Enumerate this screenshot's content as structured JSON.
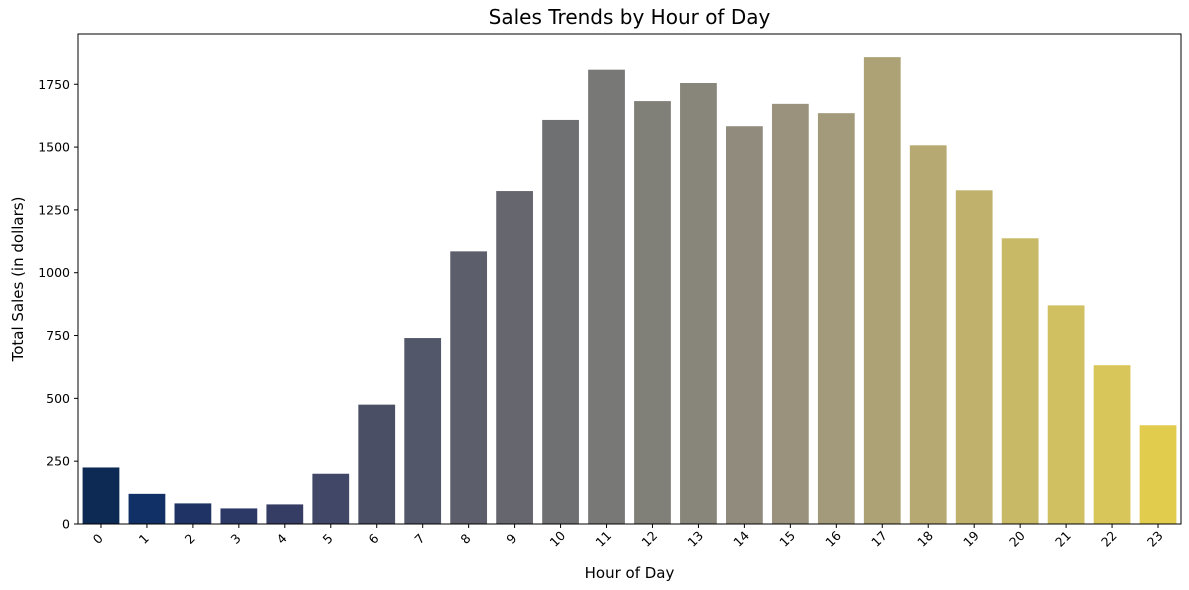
{
  "chart_data": {
    "type": "bar",
    "title": "Sales Trends by Hour of Day",
    "xlabel": "Hour of Day",
    "ylabel": "Total Sales (in dollars)",
    "categories": [
      "0",
      "1",
      "2",
      "3",
      "4",
      "5",
      "6",
      "7",
      "8",
      "9",
      "10",
      "11",
      "12",
      "13",
      "14",
      "15",
      "16",
      "17",
      "18",
      "19",
      "20",
      "21",
      "22",
      "23"
    ],
    "values": [
      225,
      120,
      82,
      62,
      78,
      200,
      475,
      740,
      1085,
      1325,
      1608,
      1808,
      1683,
      1755,
      1583,
      1672,
      1635,
      1858,
      1507,
      1328,
      1137,
      870,
      632,
      393
    ],
    "colors": [
      "#0c2a54",
      "#113166",
      "#1f3465",
      "#2c3865",
      "#363d64",
      "#414766",
      "#4a4f66",
      "#525869",
      "#5c5f6b",
      "#66676e",
      "#6f7072",
      "#787876",
      "#807f78",
      "#88867a",
      "#918b7d",
      "#9a927c",
      "#a39a7b",
      "#aca276",
      "#b6a971",
      "#c0b26c",
      "#c8b967",
      "#d1c062",
      "#d8c65a",
      "#e1cc4e"
    ],
    "y_ticks": [
      0,
      250,
      500,
      750,
      1000,
      1250,
      1500,
      1750
    ],
    "ylim": [
      0,
      1950
    ],
    "grid": false,
    "legend": "none"
  }
}
